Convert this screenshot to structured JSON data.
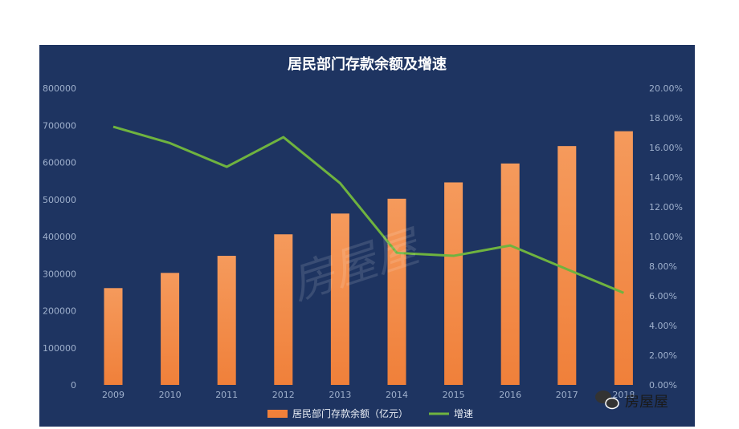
{
  "colors": {
    "panel_bg": "#1e3461",
    "bar": "#f0803a",
    "bar_light": "#f59a5c",
    "line": "#6fb33f"
  },
  "watermark": "房屋屋",
  "brand": {
    "icon": "wechat-icon",
    "text": "房屋屋"
  },
  "chart_data": {
    "type": "bar",
    "title": "居民部门存款余额及增速",
    "categories": [
      "2009",
      "2010",
      "2011",
      "2012",
      "2013",
      "2014",
      "2015",
      "2016",
      "2017",
      "2018"
    ],
    "series": [
      {
        "name": "居民部门存款余额（亿元）",
        "type": "bar",
        "axis": "left",
        "values": [
          261000,
          302000,
          348000,
          406000,
          462000,
          502000,
          546000,
          597000,
          644000,
          684000
        ]
      },
      {
        "name": "增速",
        "type": "line",
        "axis": "right",
        "values": [
          17.4,
          16.3,
          14.7,
          16.7,
          13.6,
          8.9,
          8.7,
          9.4,
          7.8,
          6.2
        ]
      }
    ],
    "left_axis": {
      "ylim": [
        0,
        800000
      ],
      "ticks": [
        "800000",
        "700000",
        "600000",
        "500000",
        "400000",
        "300000",
        "200000",
        "100000",
        "0"
      ]
    },
    "right_axis": {
      "ylim": [
        0,
        20
      ],
      "ticks": [
        "20.00%",
        "18.00%",
        "16.00%",
        "14.00%",
        "12.00%",
        "10.00%",
        "8.00%",
        "6.00%",
        "4.00%",
        "2.00%",
        "0.00%"
      ]
    },
    "grid": false,
    "legend_position": "bottom"
  }
}
